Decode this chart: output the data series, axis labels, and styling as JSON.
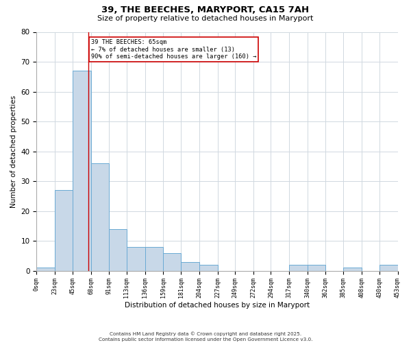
{
  "title": "39, THE BEECHES, MARYPORT, CA15 7AH",
  "subtitle": "Size of property relative to detached houses in Maryport",
  "xlabel": "Distribution of detached houses by size in Maryport",
  "ylabel": "Number of detached properties",
  "bin_edges": [
    0,
    23,
    45,
    68,
    91,
    113,
    136,
    159,
    181,
    204,
    227,
    249,
    272,
    294,
    317,
    340,
    362,
    385,
    408,
    430,
    453
  ],
  "bin_labels": [
    "0sqm",
    "23sqm",
    "45sqm",
    "68sqm",
    "91sqm",
    "113sqm",
    "136sqm",
    "159sqm",
    "181sqm",
    "204sqm",
    "227sqm",
    "249sqm",
    "272sqm",
    "294sqm",
    "317sqm",
    "340sqm",
    "362sqm",
    "385sqm",
    "408sqm",
    "430sqm",
    "453sqm"
  ],
  "counts": [
    1,
    27,
    67,
    36,
    14,
    8,
    8,
    6,
    3,
    2,
    0,
    0,
    0,
    0,
    2,
    2,
    0,
    1,
    0,
    2
  ],
  "bar_color": "#c8d8e8",
  "bar_edge_color": "#6aaad4",
  "property_value": 65,
  "property_line_color": "#cc0000",
  "annotation_text": "39 THE BEECHES: 65sqm\n← 7% of detached houses are smaller (13)\n90% of semi-detached houses are larger (160) →",
  "annotation_box_color": "#ffffff",
  "annotation_box_edge_color": "#cc0000",
  "ylim": [
    0,
    80
  ],
  "yticks": [
    0,
    10,
    20,
    30,
    40,
    50,
    60,
    70,
    80
  ],
  "background_color": "#ffffff",
  "grid_color": "#d0d8e0",
  "footer_line1": "Contains HM Land Registry data © Crown copyright and database right 2025.",
  "footer_line2": "Contains public sector information licensed under the Open Government Licence v3.0."
}
